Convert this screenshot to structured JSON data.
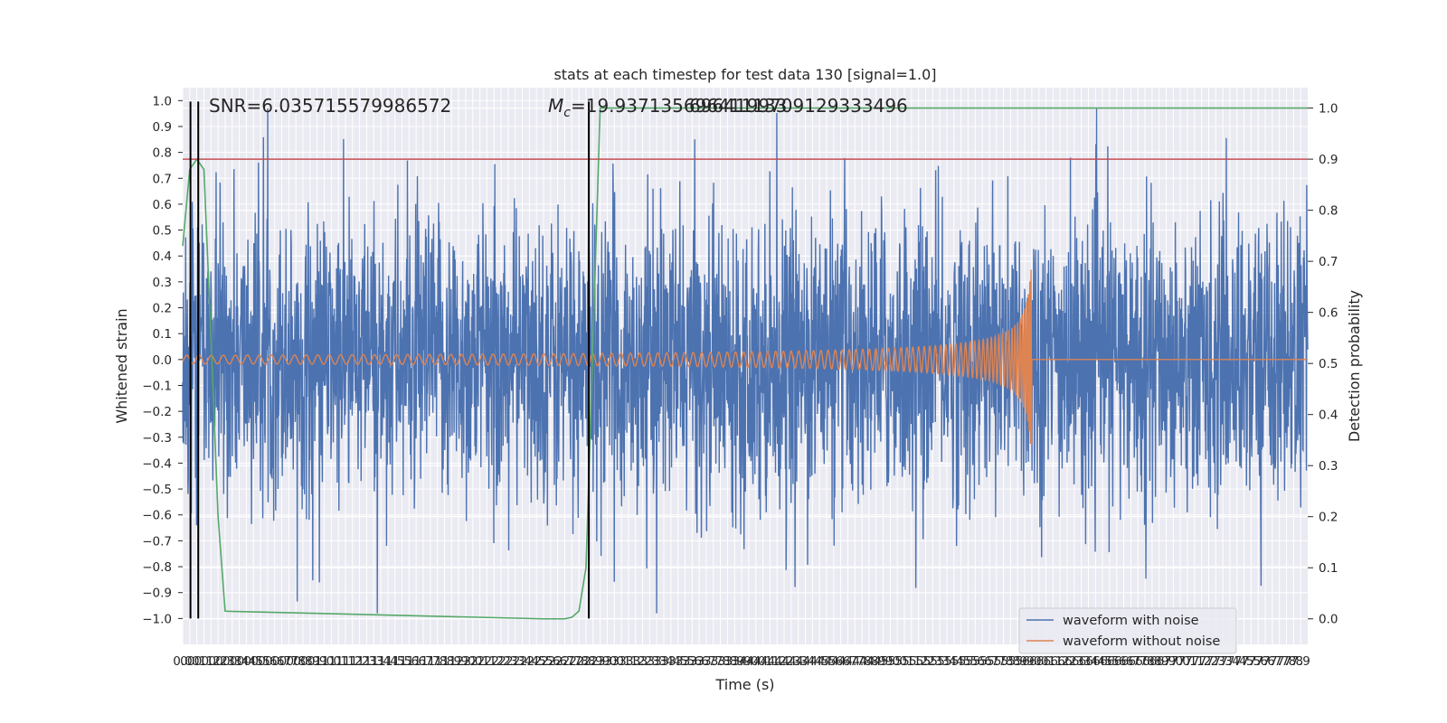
{
  "chart_data": {
    "type": "line",
    "title": "stats at each timestep for test data 130 [signal=1.0]",
    "xlabel": "Time (s)",
    "ylabel": "Whitened strain",
    "y2label": "Detection probability",
    "xlim": [
      0.0,
      7.95
    ],
    "ylim": [
      -1.1,
      1.05
    ],
    "y2lim": [
      -0.05,
      1.04
    ],
    "xticks": [
      0.0,
      0.05,
      0.1,
      0.15,
      0.2,
      0.25,
      0.3,
      0.35,
      0.4,
      0.45,
      0.5,
      0.55,
      0.6,
      0.65,
      0.7,
      0.75,
      0.8,
      0.85,
      0.9,
      0.95,
      1.0,
      1.05,
      1.1,
      1.15,
      1.2,
      1.25,
      1.3,
      1.35,
      1.4,
      1.45,
      1.5,
      1.55,
      1.6,
      1.65,
      1.7,
      1.75,
      1.8,
      1.85,
      1.9,
      1.95,
      2.0,
      2.05,
      2.1,
      2.15,
      2.2,
      2.25,
      2.3,
      2.35,
      2.4,
      2.45,
      2.5,
      2.55,
      2.6,
      2.65,
      2.7,
      2.75,
      2.8,
      2.85,
      2.9,
      2.95,
      3.0,
      3.05,
      3.1,
      3.15,
      3.2,
      3.25,
      3.3,
      3.35,
      3.4,
      3.45,
      3.5,
      3.55,
      3.6,
      3.65,
      3.7,
      3.75,
      3.8,
      3.85,
      3.9,
      3.95,
      4.0,
      4.05,
      4.1,
      4.15,
      4.2,
      4.25,
      4.3,
      4.35,
      4.4,
      4.45,
      4.5,
      4.55,
      4.6,
      4.65,
      4.7,
      4.75,
      4.8,
      4.85,
      4.9,
      4.95,
      5.0,
      5.05,
      5.1,
      5.15,
      5.2,
      5.25,
      5.3,
      5.35,
      5.4,
      5.45,
      5.5,
      5.55,
      5.6,
      5.65,
      5.7,
      5.75,
      5.8,
      5.85,
      5.9,
      5.95,
      6.0,
      6.05,
      6.1,
      6.15,
      6.2,
      6.25,
      6.3,
      6.35,
      6.4,
      6.45,
      6.5,
      6.55,
      6.6,
      6.65,
      6.7,
      6.75,
      6.8,
      6.85,
      6.9,
      6.95,
      7.0,
      7.05,
      7.1,
      7.15,
      7.2,
      7.25,
      7.3,
      7.35,
      7.4,
      7.45,
      7.5,
      7.55,
      7.6,
      7.65,
      7.7,
      7.75,
      7.8,
      7.85,
      7.9
    ],
    "xtick_labels": [
      "0.0",
      "0.0",
      "0.1",
      "0.1",
      "0.2",
      "0.2",
      "0.3",
      "0.3",
      "0.4",
      "0.4",
      "0.5",
      "0.5",
      "0.6",
      "0.6",
      "0.7",
      "0.7",
      "0.8",
      "0.8",
      "0.9",
      "0.9",
      "1.0",
      "1.0",
      "1.1",
      "1.1",
      "1.2",
      "1.2",
      "1.3",
      "1.3",
      "1.4",
      "1.4",
      "1.5",
      "1.5",
      "1.6",
      "1.6",
      "1.7",
      "1.7",
      "1.8",
      "1.8",
      "1.9",
      "1.9",
      "2.0",
      "2.0",
      "2.1",
      "2.1",
      "2.2",
      "2.2",
      "2.3",
      "2.3",
      "2.4",
      "2.4",
      "2.5",
      "2.5",
      "2.6",
      "2.6",
      "2.7",
      "2.7",
      "2.8",
      "2.8",
      "2.9",
      "2.9",
      "3.0",
      "3.0",
      "3.1",
      "3.1",
      "3.2",
      "3.2",
      "3.3",
      "3.3",
      "3.4",
      "3.4",
      "3.5",
      "3.5",
      "3.6",
      "3.6",
      "3.7",
      "3.7",
      "3.8",
      "3.8",
      "3.9",
      "3.9",
      "4.0",
      "4.0",
      "4.1",
      "4.1",
      "4.2",
      "4.2",
      "4.3",
      "4.3",
      "4.4",
      "4.4",
      "4.5",
      "4.5",
      "4.6",
      "4.6",
      "4.7",
      "4.7",
      "4.8",
      "4.8",
      "4.9",
      "4.9",
      "5.0",
      "5.0",
      "5.1",
      "5.1",
      "5.2",
      "5.2",
      "5.3",
      "5.3",
      "5.4",
      "5.4",
      "5.5",
      "5.5",
      "5.6",
      "5.6",
      "5.7",
      "5.7",
      "5.8",
      "5.8",
      "5.9",
      "5.9",
      "6.0",
      "6.0",
      "6.1",
      "6.1",
      "6.2",
      "6.2",
      "6.3",
      "6.3",
      "6.4",
      "6.4",
      "6.5",
      "6.5",
      "6.6",
      "6.6",
      "6.7",
      "6.7",
      "6.8",
      "6.8",
      "6.9",
      "6.9",
      "7.0",
      "7.0",
      "7.1",
      "7.1",
      "7.2",
      "7.2",
      "7.3",
      "7.3",
      "7.4",
      "7.4",
      "7.5",
      "7.5",
      "7.6",
      "7.6",
      "7.7",
      "7.7",
      "7.8",
      "7.8",
      "7.9"
    ],
    "yticks": [
      1.0,
      0.9,
      0.8,
      0.7,
      0.6,
      0.5,
      0.4,
      0.3,
      0.2,
      0.1,
      0.0,
      -0.1,
      -0.2,
      -0.3,
      -0.4,
      -0.5,
      -0.6,
      -0.7,
      -0.8,
      -0.9,
      -1.0
    ],
    "ytick_labels": [
      "1.0",
      "0.9",
      "0.8",
      "0.7",
      "0.6",
      "0.5",
      "0.4",
      "0.3",
      "0.2",
      "0.1",
      "0.0",
      "−0.1",
      "−0.2",
      "−0.3",
      "−0.4",
      "−0.5",
      "−0.6",
      "−0.7",
      "−0.8",
      "−0.9",
      "−1.0"
    ],
    "y2ticks": [
      1.0,
      0.9,
      0.8,
      0.7,
      0.6,
      0.5,
      0.4,
      0.3,
      0.2,
      0.1,
      0.0
    ],
    "y2tick_labels": [
      "1.0",
      "0.9",
      "0.8",
      "0.7",
      "0.6",
      "0.5",
      "0.4",
      "0.3",
      "0.2",
      "0.1",
      "0.0"
    ],
    "grid": true,
    "legend_position": "lower-right",
    "series": [
      {
        "name": "waveform with noise",
        "color": "#4c72b0",
        "kind": "noise",
        "amplitude_envelope": [
          0.55,
          0.95
        ],
        "x_range": [
          0.0,
          7.95
        ]
      },
      {
        "name": "waveform without noise",
        "color": "#dd8452",
        "kind": "chirp",
        "merger_time": 6.0,
        "peak_amplitude": 0.35,
        "x_range": [
          0.0,
          7.95
        ]
      },
      {
        "name": "",
        "color": "#55a868",
        "axis": "y2",
        "kind": "probability",
        "x": [
          0.0,
          0.05,
          0.1,
          0.15,
          0.2,
          0.25,
          0.3,
          2.55,
          2.65,
          2.7,
          2.75,
          2.8,
          2.85,
          2.9,
          2.95,
          7.95
        ],
        "y": [
          0.73,
          0.88,
          0.9,
          0.88,
          0.55,
          0.2,
          0.015,
          0.0,
          0.0,
          0.0,
          0.003,
          0.015,
          0.1,
          0.55,
          1.0,
          1.0
        ]
      }
    ],
    "reference_lines": [
      {
        "orientation": "horizontal",
        "axis": "y2",
        "value": 0.9,
        "color": "#c44e52"
      },
      {
        "orientation": "vertical",
        "value": 0.055,
        "color": "#000000"
      },
      {
        "orientation": "vertical",
        "value": 0.11,
        "color": "#000000"
      },
      {
        "orientation": "vertical",
        "value": 2.87,
        "color": "#000000"
      }
    ],
    "annotations": {
      "snr": "SNR=6.035715579986572",
      "mc_prefix": "M",
      "mc_sub": "c",
      "mc_value": "=19.937135696411133",
      "overlap_text": "6964199709129333496"
    }
  }
}
